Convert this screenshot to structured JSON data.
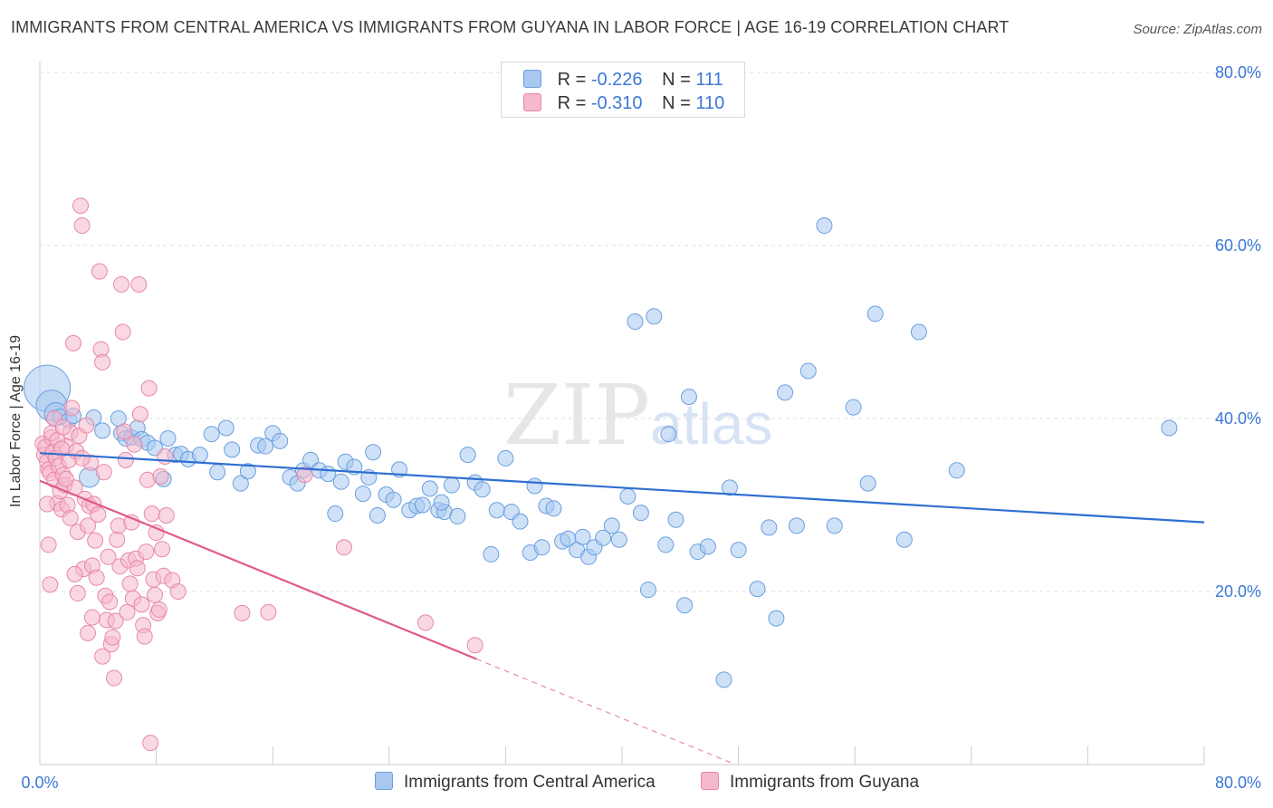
{
  "title": "IMMIGRANTS FROM CENTRAL AMERICA VS IMMIGRANTS FROM GUYANA IN LABOR FORCE | AGE 16-19 CORRELATION CHART",
  "source": "Source: ZipAtlas.com",
  "watermark": {
    "zip": "ZIP",
    "atlas": "atlas"
  },
  "legend": {
    "rows": [
      {
        "r_label": "R =",
        "r_value": "-0.226",
        "n_label": "N =",
        "n_value": "111"
      },
      {
        "r_label": "R =",
        "r_value": "-0.310",
        "n_label": "N =",
        "n_value": "110"
      }
    ]
  },
  "colors": {
    "blue_fill": "#a8c8f0",
    "blue_stroke": "#6a9fdf",
    "blue_line": "#2f6fd0",
    "pink_fill": "#f5b8cc",
    "pink_stroke": "#e888a8",
    "pink_line": "#e05a8a",
    "axis_text": "#3a78d6",
    "grid": "#dddddd"
  },
  "chart_data": {
    "type": "scatter",
    "title": "IMMIGRANTS FROM CENTRAL AMERICA VS IMMIGRANTS FROM GUYANA IN LABOR FORCE | AGE 16-19 CORRELATION CHART",
    "xlabel": "",
    "ylabel": "In Labor Force | Age 16-19",
    "xlim": [
      0,
      80
    ],
    "ylim": [
      0,
      80
    ],
    "x_tick_labels": [
      "0.0%",
      "80.0%"
    ],
    "y_tick_labels": [
      "20.0%",
      "40.0%",
      "60.0%",
      "80.0%"
    ],
    "y_ticks": [
      20,
      40,
      60,
      80
    ],
    "legend_position": "top-center",
    "grid": true,
    "series": [
      {
        "name": "Immigrants from Central America",
        "color": "#a8c8f0",
        "r": -0.226,
        "n": 111,
        "trend": {
          "x": [
            0,
            80
          ],
          "y": [
            36.0,
            28.0
          ],
          "dashed_from": null
        },
        "points": [
          [
            0.5,
            43.5,
            3
          ],
          [
            0.8,
            41.5,
            2
          ],
          [
            1.1,
            40.5,
            1.5
          ],
          [
            1.4,
            40.2,
            1
          ],
          [
            2.0,
            39.8,
            1
          ],
          [
            2.3,
            40.3,
            1
          ],
          [
            3.4,
            33.2,
            1.3
          ],
          [
            3.7,
            40.1,
            1
          ],
          [
            4.3,
            38.6,
            1
          ],
          [
            5.4,
            40.0,
            1
          ],
          [
            5.6,
            38.3,
            1
          ],
          [
            5.9,
            37.7,
            1
          ],
          [
            6.3,
            37.8,
            1
          ],
          [
            6.7,
            38.9,
            1
          ],
          [
            7.0,
            37.6,
            1
          ],
          [
            7.4,
            37.2,
            1
          ],
          [
            7.9,
            36.6,
            1
          ],
          [
            8.5,
            33.0,
            1
          ],
          [
            8.8,
            37.7,
            1
          ],
          [
            9.3,
            35.8,
            1
          ],
          [
            9.7,
            35.9,
            1
          ],
          [
            10.2,
            35.3,
            1
          ],
          [
            11.0,
            35.8,
            1
          ],
          [
            11.8,
            38.2,
            1
          ],
          [
            12.2,
            33.8,
            1
          ],
          [
            12.8,
            38.9,
            1
          ],
          [
            13.2,
            36.4,
            1
          ],
          [
            13.8,
            32.5,
            1
          ],
          [
            14.3,
            33.9,
            1
          ],
          [
            15.0,
            36.9,
            1
          ],
          [
            15.5,
            36.8,
            1
          ],
          [
            16.0,
            38.3,
            1
          ],
          [
            16.5,
            37.4,
            1
          ],
          [
            17.2,
            33.2,
            1
          ],
          [
            17.7,
            32.5,
            1
          ],
          [
            18.1,
            34.0,
            1
          ],
          [
            18.6,
            35.2,
            1
          ],
          [
            19.2,
            34.0,
            1
          ],
          [
            19.8,
            33.6,
            1
          ],
          [
            20.3,
            29.0,
            1
          ],
          [
            20.7,
            32.7,
            1
          ],
          [
            21.0,
            35.0,
            1
          ],
          [
            21.6,
            34.4,
            1
          ],
          [
            22.2,
            31.3,
            1
          ],
          [
            22.6,
            33.2,
            1
          ],
          [
            23.2,
            28.8,
            1
          ],
          [
            23.8,
            31.2,
            1
          ],
          [
            24.3,
            30.6,
            1
          ],
          [
            24.7,
            34.1,
            1
          ],
          [
            25.4,
            29.4,
            1
          ],
          [
            25.9,
            29.9,
            1
          ],
          [
            26.3,
            30.0,
            1
          ],
          [
            26.8,
            31.9,
            1
          ],
          [
            27.4,
            29.4,
            1
          ],
          [
            27.8,
            29.2,
            1
          ],
          [
            28.3,
            32.3,
            1
          ],
          [
            28.7,
            28.7,
            1
          ],
          [
            29.4,
            35.8,
            1
          ],
          [
            29.9,
            32.6,
            1
          ],
          [
            30.4,
            31.8,
            1
          ],
          [
            31.0,
            24.3,
            1
          ],
          [
            31.4,
            29.4,
            1
          ],
          [
            32.0,
            35.4,
            1
          ],
          [
            32.4,
            29.2,
            1
          ],
          [
            33.0,
            28.1,
            1
          ],
          [
            33.7,
            24.5,
            1
          ],
          [
            34.0,
            32.2,
            1
          ],
          [
            34.5,
            25.1,
            1
          ],
          [
            34.8,
            29.9,
            1
          ],
          [
            35.3,
            29.6,
            1
          ],
          [
            35.9,
            25.8,
            1
          ],
          [
            36.3,
            26.1,
            1
          ],
          [
            36.9,
            24.8,
            1
          ],
          [
            37.3,
            26.3,
            1
          ],
          [
            37.7,
            24.0,
            1
          ],
          [
            38.1,
            25.1,
            1
          ],
          [
            38.7,
            26.2,
            1
          ],
          [
            39.3,
            27.6,
            1
          ],
          [
            39.8,
            26.0,
            1
          ],
          [
            40.4,
            31.0,
            1
          ],
          [
            40.9,
            51.2,
            1
          ],
          [
            41.3,
            29.1,
            1
          ],
          [
            41.8,
            20.2,
            1
          ],
          [
            42.2,
            51.8,
            1
          ],
          [
            43.0,
            25.4,
            1
          ],
          [
            43.2,
            38.2,
            1
          ],
          [
            43.7,
            28.3,
            1
          ],
          [
            44.3,
            18.4,
            1
          ],
          [
            44.6,
            42.5,
            1
          ],
          [
            45.2,
            24.6,
            1
          ],
          [
            45.9,
            25.2,
            1
          ],
          [
            47.0,
            9.8,
            1
          ],
          [
            47.4,
            32.0,
            1
          ],
          [
            48.0,
            24.8,
            1
          ],
          [
            49.3,
            20.3,
            1
          ],
          [
            50.1,
            27.4,
            1
          ],
          [
            50.6,
            16.9,
            1
          ],
          [
            51.2,
            43.0,
            1
          ],
          [
            52.0,
            27.6,
            1
          ],
          [
            52.8,
            45.5,
            1
          ],
          [
            53.9,
            62.3,
            1
          ],
          [
            54.6,
            27.6,
            1
          ],
          [
            55.9,
            41.3,
            1
          ],
          [
            56.9,
            32.5,
            1
          ],
          [
            57.4,
            52.1,
            1
          ],
          [
            59.4,
            26.0,
            1
          ],
          [
            60.4,
            50.0,
            1
          ],
          [
            63.0,
            34.0,
            1
          ],
          [
            77.6,
            38.9,
            1
          ],
          [
            27.6,
            30.3,
            1
          ],
          [
            22.9,
            36.1,
            1
          ]
        ]
      },
      {
        "name": "Immigrants from Guyana",
        "color": "#f5b8cc",
        "r": -0.31,
        "n": 110,
        "trend": {
          "x": [
            0,
            30
          ],
          "y": [
            32.8,
            12.2
          ],
          "dashed_to": [
            47.5,
            0.2
          ]
        },
        "points": [
          [
            0.2,
            37.1,
            1
          ],
          [
            0.3,
            35.8,
            1
          ],
          [
            0.4,
            36.7,
            1
          ],
          [
            0.5,
            35.0,
            1
          ],
          [
            0.6,
            34.1,
            1
          ],
          [
            0.7,
            33.7,
            1
          ],
          [
            0.8,
            37.8,
            1
          ],
          [
            0.9,
            36.1,
            1
          ],
          [
            1.0,
            32.9,
            1
          ],
          [
            1.1,
            35.4,
            1
          ],
          [
            1.2,
            30.2,
            1
          ],
          [
            1.3,
            34.5,
            1
          ],
          [
            1.4,
            31.6,
            1
          ],
          [
            1.5,
            29.5,
            1
          ],
          [
            1.6,
            33.5,
            1
          ],
          [
            1.7,
            32.3,
            1
          ],
          [
            1.8,
            36.8,
            1
          ],
          [
            1.9,
            30.0,
            1
          ],
          [
            2.0,
            35.2,
            1
          ],
          [
            2.1,
            38.4,
            1
          ],
          [
            2.2,
            41.2,
            1
          ],
          [
            2.3,
            48.7,
            1
          ],
          [
            2.4,
            32.0,
            1
          ],
          [
            2.5,
            36.2,
            1
          ],
          [
            2.6,
            26.9,
            1
          ],
          [
            2.7,
            38.0,
            1
          ],
          [
            2.8,
            64.6,
            1
          ],
          [
            2.9,
            62.3,
            1
          ],
          [
            3.0,
            22.6,
            1
          ],
          [
            3.1,
            30.7,
            1
          ],
          [
            3.2,
            39.2,
            1
          ],
          [
            3.3,
            27.6,
            1
          ],
          [
            3.4,
            29.9,
            1
          ],
          [
            3.5,
            34.9,
            1
          ],
          [
            3.6,
            23.0,
            1
          ],
          [
            3.7,
            30.1,
            1
          ],
          [
            3.8,
            25.9,
            1
          ],
          [
            3.9,
            21.6,
            1
          ],
          [
            4.0,
            28.9,
            1
          ],
          [
            4.1,
            57.0,
            1
          ],
          [
            4.2,
            48.0,
            1
          ],
          [
            4.3,
            46.5,
            1
          ],
          [
            4.4,
            33.8,
            1
          ],
          [
            4.5,
            19.5,
            1
          ],
          [
            4.6,
            16.7,
            1
          ],
          [
            4.7,
            24.0,
            1
          ],
          [
            4.8,
            18.8,
            1
          ],
          [
            4.9,
            13.9,
            1
          ],
          [
            5.0,
            14.7,
            1
          ],
          [
            5.1,
            10.0,
            1
          ],
          [
            5.2,
            16.6,
            1
          ],
          [
            5.3,
            26.0,
            1
          ],
          [
            5.4,
            27.6,
            1
          ],
          [
            5.5,
            22.9,
            1
          ],
          [
            5.6,
            55.5,
            1
          ],
          [
            5.7,
            50.0,
            1
          ],
          [
            5.8,
            38.5,
            1
          ],
          [
            5.9,
            35.2,
            1
          ],
          [
            6.0,
            17.6,
            1
          ],
          [
            6.1,
            23.6,
            1
          ],
          [
            6.2,
            20.9,
            1
          ],
          [
            6.3,
            28.0,
            1
          ],
          [
            6.4,
            19.2,
            1
          ],
          [
            6.5,
            37.0,
            1
          ],
          [
            6.6,
            23.8,
            1
          ],
          [
            6.7,
            22.7,
            1
          ],
          [
            6.8,
            55.5,
            1
          ],
          [
            6.9,
            40.5,
            1
          ],
          [
            7.0,
            18.5,
            1
          ],
          [
            7.1,
            16.1,
            1
          ],
          [
            7.2,
            14.8,
            1
          ],
          [
            7.3,
            24.6,
            1
          ],
          [
            7.4,
            32.9,
            1
          ],
          [
            7.5,
            43.5,
            1
          ],
          [
            7.6,
            2.5,
            1
          ],
          [
            7.7,
            29.0,
            1
          ],
          [
            7.8,
            21.4,
            1
          ],
          [
            7.9,
            19.6,
            1
          ],
          [
            8.0,
            26.8,
            1
          ],
          [
            8.1,
            17.5,
            1
          ],
          [
            8.2,
            17.9,
            1
          ],
          [
            8.3,
            33.3,
            1
          ],
          [
            8.4,
            24.9,
            1
          ],
          [
            8.5,
            21.8,
            1
          ],
          [
            8.6,
            35.6,
            1
          ],
          [
            8.7,
            28.8,
            1
          ],
          [
            0.5,
            30.1,
            1
          ],
          [
            0.6,
            25.4,
            1
          ],
          [
            0.7,
            20.8,
            1
          ],
          [
            0.8,
            38.3,
            1
          ],
          [
            1.0,
            40.0,
            1
          ],
          [
            1.2,
            37.5,
            1
          ],
          [
            1.5,
            36.5,
            1
          ],
          [
            1.8,
            33.0,
            1
          ],
          [
            2.1,
            28.5,
            1
          ],
          [
            2.4,
            22.0,
            1
          ],
          [
            2.6,
            19.8,
            1
          ],
          [
            3.3,
            15.2,
            1
          ],
          [
            3.6,
            17.0,
            1
          ],
          [
            4.3,
            12.5,
            1
          ],
          [
            13.9,
            17.5,
            1
          ],
          [
            15.7,
            17.6,
            1
          ],
          [
            18.2,
            33.5,
            1
          ],
          [
            20.9,
            25.1,
            1
          ],
          [
            26.5,
            16.4,
            1
          ],
          [
            29.9,
            13.8,
            1
          ],
          [
            9.1,
            21.3,
            1
          ],
          [
            9.5,
            20.0,
            1
          ],
          [
            2.9,
            35.4,
            1
          ],
          [
            1.6,
            39.0,
            1
          ]
        ]
      }
    ]
  },
  "bottom_legend": [
    {
      "label": "Immigrants from Central America"
    },
    {
      "label": "Immigrants from Guyana"
    }
  ]
}
